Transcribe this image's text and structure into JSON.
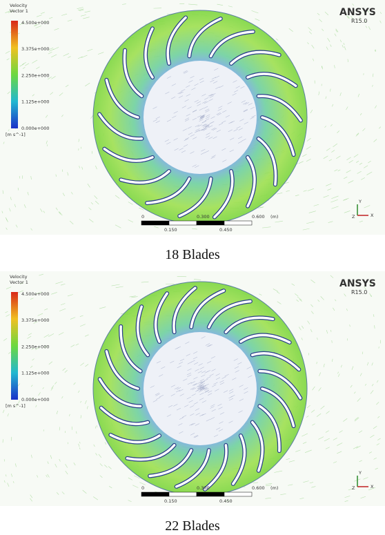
{
  "panels": [
    {
      "legend": {
        "title": [
          "Velocity",
          "Vector 1"
        ],
        "labels": [
          "4.500e+000",
          "3.375e+000",
          "2.250e+000",
          "1.125e+000",
          "0.000e+000"
        ],
        "unit": "[m s^-1]"
      },
      "logo": "ANSYS",
      "version": "R15.0",
      "scale": {
        "top": [
          "0",
          "0.300",
          "0.600",
          "(m)"
        ],
        "bottom": [
          "0.150",
          "0.450"
        ]
      },
      "axes": [
        "Y",
        "X",
        "Z"
      ],
      "caption": "18 Blades"
    },
    {
      "legend": {
        "title": [
          "Velocity",
          "Vector 1"
        ],
        "labels": [
          "4.500e+000",
          "3.375e+000",
          "2.250e+000",
          "1.125e+000",
          "0.000e+000"
        ],
        "unit": "[m s^-1]"
      },
      "logo": "ANSYS",
      "version": "R15.0",
      "scale": {
        "top": [
          "0",
          "0.300",
          "0.600",
          "(m)"
        ],
        "bottom": [
          "0.150",
          "0.450"
        ]
      },
      "axes": [
        "Y",
        "X",
        "Z"
      ],
      "caption": "22 Blades"
    }
  ]
}
